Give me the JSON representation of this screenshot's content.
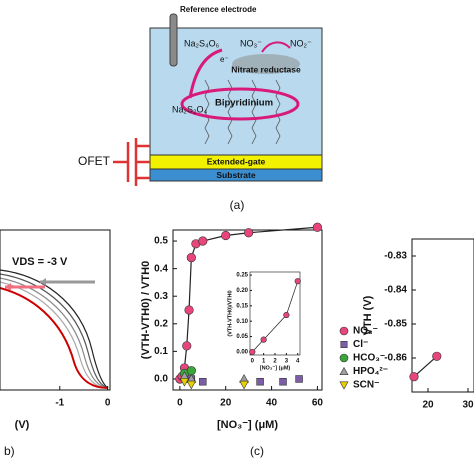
{
  "diagram": {
    "reference": "Reference electrode",
    "oxidized": "Na₂S₄O₆",
    "nitrate": "NO₃⁻",
    "nitrite": "NO₂⁻",
    "electron": "e⁻",
    "enzyme": "Nitrate reductase",
    "mediator": "Bipyridinium",
    "reduced": "Na₂S₂O₄",
    "gate": "Extended-gate",
    "substrate": "Substrate",
    "device": "OFET",
    "caption": "(a)"
  },
  "chart_data": [
    {
      "type": "line",
      "annotation": "VDS = -3 V",
      "xlabel": "(V)",
      "caption": "b)",
      "xlim": [
        -2.25,
        0.05
      ],
      "xticks": [
        -1,
        0
      ]
    },
    {
      "type": "scatter",
      "caption": "(c)",
      "ylabel": "(VTH-VTH0) / VTH0",
      "xlabel": "[NO₃⁻] (μM)",
      "xlim": [
        -3,
        62
      ],
      "xticks": [
        0,
        20,
        40,
        60
      ],
      "ylim": [
        -0.04,
        0.54
      ],
      "yticks": [
        {
          "value": 0,
          "label": "0.0"
        },
        0.1,
        0.2,
        0.3,
        0.4,
        0.5
      ],
      "legend": "right",
      "series": [
        {
          "name": "NO₃⁻",
          "color": "#e8457a",
          "marker": "circle",
          "line": true,
          "x": [
            0,
            1,
            2,
            3,
            4,
            5,
            7,
            10,
            20,
            30,
            60
          ],
          "values": [
            0.0,
            0.01,
            0.04,
            0.12,
            0.25,
            0.44,
            0.49,
            0.5,
            0.52,
            0.53,
            0.55
          ]
        },
        {
          "name": "Cl⁻",
          "color": "#7b5ea7",
          "marker": "square",
          "x": [
            5,
            10,
            35,
            45,
            52
          ],
          "values": [
            0.0,
            -0.01,
            -0.01,
            -0.01,
            0.0
          ]
        },
        {
          "name": "HCO₃⁻",
          "color": "#3aa63a",
          "marker": "circle",
          "x": [
            2,
            5
          ],
          "values": [
            0.02,
            0.03
          ]
        },
        {
          "name": "HPO₄²⁻",
          "color": "#a0a0a0",
          "marker": "triangle-up",
          "x": [
            2,
            5,
            28
          ],
          "values": [
            0.01,
            0.0,
            0.0
          ]
        },
        {
          "name": "SCN⁻",
          "color": "#e8d000",
          "marker": "triangle-down",
          "x": [
            2,
            5,
            28
          ],
          "values": [
            -0.01,
            -0.02,
            -0.02
          ]
        }
      ]
    },
    {
      "type": "scatter",
      "ylabel": "(VTH-VTH0)/VTH0",
      "xlabel": "[NO₃⁻] (μM)",
      "xlim": [
        -0.2,
        4.2
      ],
      "xticks": [
        0,
        1,
        2,
        3,
        4
      ],
      "ylim": [
        -0.01,
        0.26
      ],
      "yticks": [
        {
          "value": 0,
          "label": "0.00"
        },
        0.05,
        {
          "value": 0.1,
          "label": "0.10"
        },
        0.15,
        {
          "value": 0.2,
          "label": "0.20"
        },
        0.25
      ],
      "series": [
        {
          "color": "#e8457a",
          "marker": "circle",
          "line": true,
          "x": [
            0,
            1,
            3,
            4
          ],
          "values": [
            0.0,
            0.04,
            0.12,
            0.23
          ]
        }
      ]
    },
    {
      "type": "scatter",
      "ylabel": "VTH (V)",
      "xlim": [
        16,
        31.5
      ],
      "xticks": [
        20,
        30
      ],
      "ylim": [
        -0.87,
        -0.825
      ],
      "yticks": [
        -0.83,
        -0.84,
        -0.85,
        -0.86
      ],
      "series": [
        {
          "color": "#e8457a",
          "marker": "circle",
          "line": true,
          "x": [
            16.5,
            22.2
          ],
          "values": [
            -0.8655,
            -0.8595
          ]
        }
      ]
    }
  ]
}
